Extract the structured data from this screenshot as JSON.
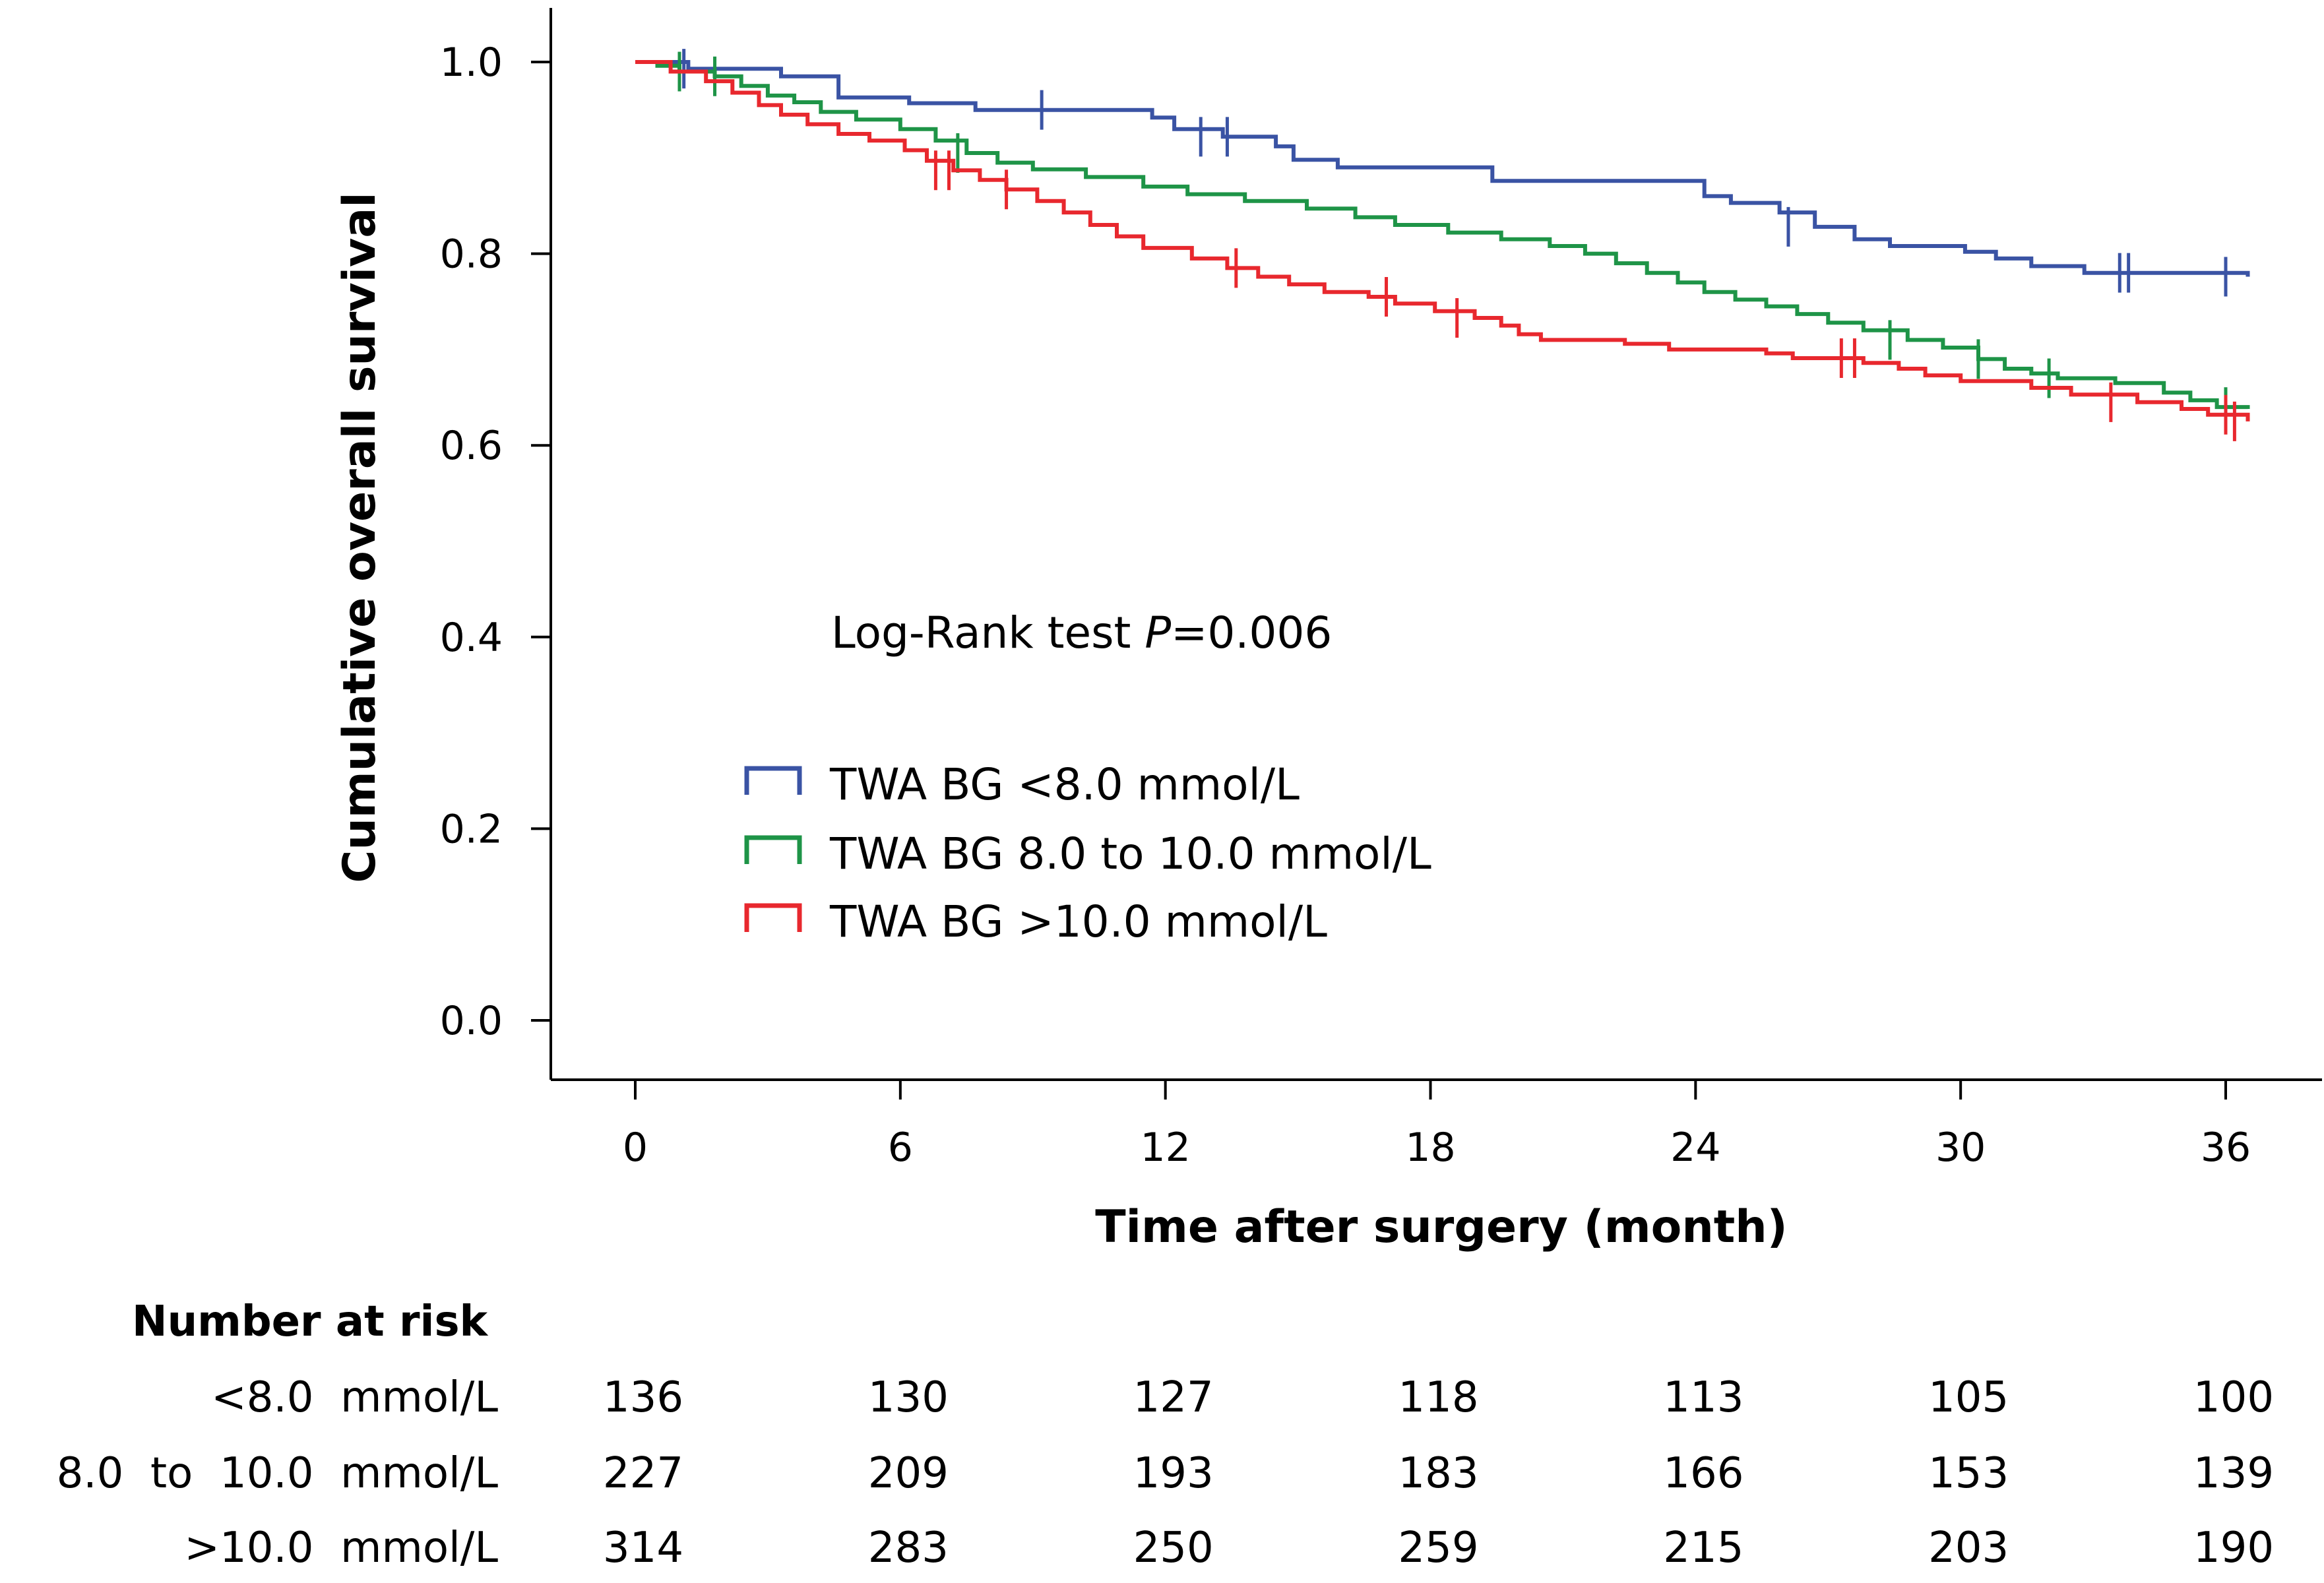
{
  "chart_data": {
    "type": "line",
    "subtype": "kaplan-meier step",
    "xlabel": "Time after surgery (month)",
    "ylabel": "Cumulative overall survival",
    "x_ticks": [
      0,
      6,
      12,
      18,
      24,
      30,
      36
    ],
    "y_ticks": [
      0.0,
      0.2,
      0.4,
      0.6,
      0.8,
      1.0
    ],
    "y_tick_labels": [
      "0.0",
      "0.2",
      "0.4",
      "0.6",
      "0.8",
      "1.0"
    ],
    "xlim": [
      -2,
      38
    ],
    "ylim": [
      -0.05,
      1.06
    ],
    "annotation": {
      "prefix": "Log-Rank test ",
      "p_symbol": "P",
      "value": "=0.006"
    },
    "series": [
      {
        "name": "TWA BG <8.0 mmol/L",
        "color": "#3A53A4",
        "points": [
          [
            0,
            1.0
          ],
          [
            1.2,
            0.993
          ],
          [
            3.3,
            0.985
          ],
          [
            4.6,
            0.963
          ],
          [
            6.2,
            0.957
          ],
          [
            7.7,
            0.95
          ],
          [
            11.7,
            0.942
          ],
          [
            12.2,
            0.93
          ],
          [
            13.3,
            0.922
          ],
          [
            14.5,
            0.912
          ],
          [
            14.9,
            0.898
          ],
          [
            15.9,
            0.89
          ],
          [
            19.4,
            0.876
          ],
          [
            24.2,
            0.86
          ],
          [
            24.8,
            0.853
          ],
          [
            25.9,
            0.843
          ],
          [
            26.7,
            0.828
          ],
          [
            27.6,
            0.815
          ],
          [
            28.4,
            0.808
          ],
          [
            30.1,
            0.802
          ],
          [
            30.8,
            0.795
          ],
          [
            31.6,
            0.787
          ],
          [
            32.8,
            0.78
          ],
          [
            36.5,
            0.776
          ]
        ],
        "censors": [
          [
            1.1,
            0.993
          ],
          [
            9.2,
            0.95
          ],
          [
            12.8,
            0.922
          ],
          [
            13.4,
            0.922
          ],
          [
            26.1,
            0.828
          ],
          [
            33.6,
            0.78
          ],
          [
            33.8,
            0.78
          ],
          [
            36.0,
            0.776
          ]
        ]
      },
      {
        "name": "TWA BG 8.0 to 10.0 mmol/L",
        "color": "#1E9447",
        "points": [
          [
            0,
            1.0
          ],
          [
            0.5,
            0.996
          ],
          [
            1.0,
            0.99
          ],
          [
            1.8,
            0.985
          ],
          [
            2.4,
            0.975
          ],
          [
            3.0,
            0.965
          ],
          [
            3.6,
            0.958
          ],
          [
            4.2,
            0.948
          ],
          [
            5.0,
            0.94
          ],
          [
            6.0,
            0.93
          ],
          [
            6.8,
            0.918
          ],
          [
            7.5,
            0.905
          ],
          [
            8.2,
            0.895
          ],
          [
            9.0,
            0.888
          ],
          [
            10.2,
            0.88
          ],
          [
            11.5,
            0.87
          ],
          [
            12.5,
            0.862
          ],
          [
            13.8,
            0.855
          ],
          [
            15.2,
            0.847
          ],
          [
            16.3,
            0.838
          ],
          [
            17.2,
            0.83
          ],
          [
            18.4,
            0.822
          ],
          [
            19.6,
            0.815
          ],
          [
            20.7,
            0.808
          ],
          [
            21.5,
            0.8
          ],
          [
            22.2,
            0.79
          ],
          [
            22.9,
            0.78
          ],
          [
            23.6,
            0.77
          ],
          [
            24.2,
            0.76
          ],
          [
            24.9,
            0.752
          ],
          [
            25.6,
            0.745
          ],
          [
            26.3,
            0.737
          ],
          [
            27.0,
            0.728
          ],
          [
            27.8,
            0.72
          ],
          [
            28.8,
            0.71
          ],
          [
            29.6,
            0.702
          ],
          [
            30.4,
            0.69
          ],
          [
            31.0,
            0.68
          ],
          [
            31.6,
            0.675
          ],
          [
            32.2,
            0.67
          ],
          [
            33.5,
            0.665
          ],
          [
            34.6,
            0.655
          ],
          [
            35.2,
            0.647
          ],
          [
            35.8,
            0.64
          ],
          [
            36.5,
            0.638
          ]
        ],
        "censors": [
          [
            1.0,
            0.99
          ],
          [
            1.8,
            0.985
          ],
          [
            7.3,
            0.905
          ],
          [
            28.4,
            0.71
          ],
          [
            30.4,
            0.69
          ],
          [
            32.0,
            0.67
          ],
          [
            36.0,
            0.64
          ]
        ]
      },
      {
        "name": "TWA BG >10.0 mmol/L",
        "color": "#E8282E",
        "points": [
          [
            0,
            1.0
          ],
          [
            0.8,
            0.99
          ],
          [
            1.6,
            0.98
          ],
          [
            2.2,
            0.968
          ],
          [
            2.8,
            0.955
          ],
          [
            3.3,
            0.945
          ],
          [
            3.9,
            0.935
          ],
          [
            4.6,
            0.925
          ],
          [
            5.3,
            0.918
          ],
          [
            6.1,
            0.908
          ],
          [
            6.6,
            0.897
          ],
          [
            7.2,
            0.887
          ],
          [
            7.8,
            0.877
          ],
          [
            8.4,
            0.867
          ],
          [
            9.1,
            0.855
          ],
          [
            9.7,
            0.843
          ],
          [
            10.3,
            0.83
          ],
          [
            10.9,
            0.818
          ],
          [
            11.5,
            0.806
          ],
          [
            12.6,
            0.795
          ],
          [
            13.4,
            0.785
          ],
          [
            14.1,
            0.776
          ],
          [
            14.8,
            0.768
          ],
          [
            15.6,
            0.76
          ],
          [
            16.6,
            0.755
          ],
          [
            17.2,
            0.748
          ],
          [
            18.1,
            0.74
          ],
          [
            19.0,
            0.733
          ],
          [
            19.6,
            0.725
          ],
          [
            20.0,
            0.716
          ],
          [
            20.5,
            0.71
          ],
          [
            22.4,
            0.706
          ],
          [
            23.4,
            0.7
          ],
          [
            25.6,
            0.696
          ],
          [
            26.2,
            0.691
          ],
          [
            27.8,
            0.686
          ],
          [
            28.6,
            0.68
          ],
          [
            29.2,
            0.673
          ],
          [
            30.0,
            0.667
          ],
          [
            31.6,
            0.66
          ],
          [
            32.5,
            0.653
          ],
          [
            34.0,
            0.645
          ],
          [
            35.0,
            0.638
          ],
          [
            35.6,
            0.632
          ],
          [
            36.5,
            0.625
          ]
        ],
        "censors": [
          [
            6.8,
            0.887
          ],
          [
            7.1,
            0.887
          ],
          [
            8.4,
            0.867
          ],
          [
            13.6,
            0.785
          ],
          [
            17.0,
            0.755
          ],
          [
            18.6,
            0.733
          ],
          [
            27.3,
            0.691
          ],
          [
            27.6,
            0.691
          ],
          [
            33.4,
            0.645
          ],
          [
            36.0,
            0.632
          ],
          [
            36.2,
            0.625
          ]
        ]
      }
    ],
    "risk_table": {
      "title": "Number at risk",
      "times": [
        0,
        6,
        12,
        18,
        24,
        30,
        36
      ],
      "rows": [
        {
          "label": "<8.0  mmol/L",
          "values": [
            "136",
            "130",
            "127",
            "118",
            "113",
            "105",
            "100"
          ]
        },
        {
          "label": "8.0  to  10.0  mmol/L",
          "values": [
            "227",
            "209",
            "193",
            "183",
            "166",
            "153",
            "139"
          ]
        },
        {
          "label": ">10.0  mmol/L",
          "values": [
            "314",
            "283",
            "250",
            "259",
            "215",
            "203",
            "190"
          ]
        }
      ]
    }
  }
}
